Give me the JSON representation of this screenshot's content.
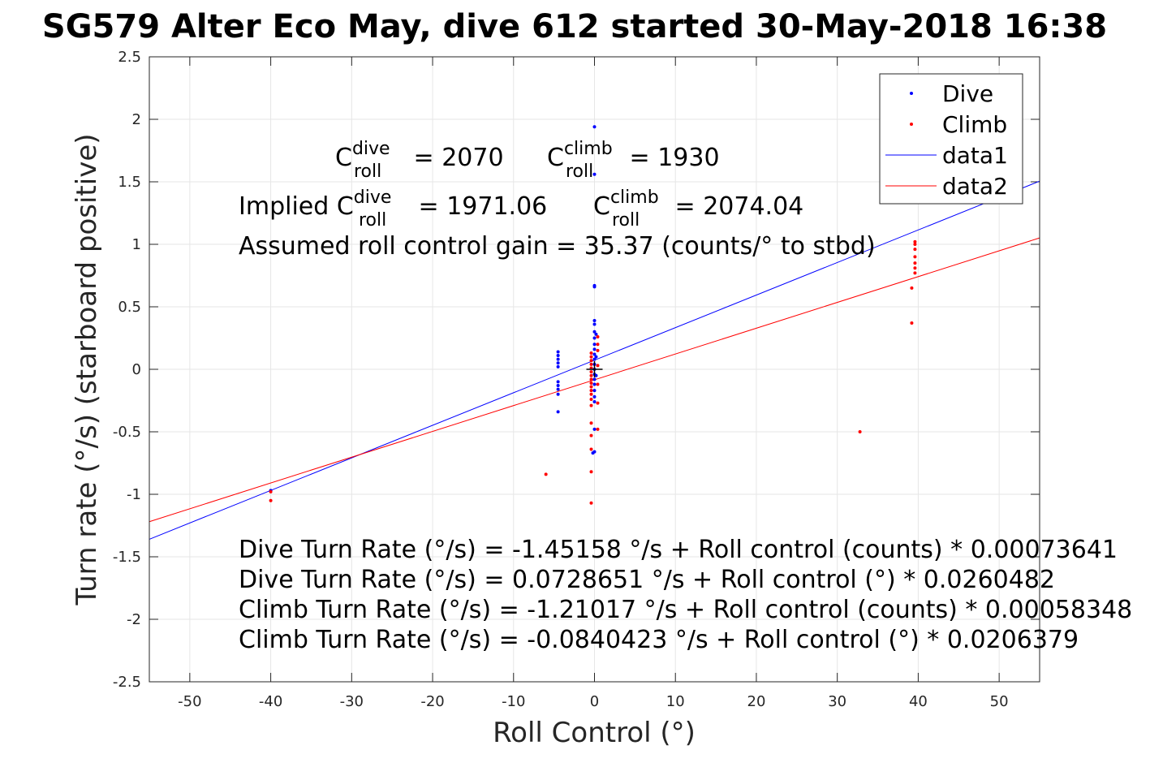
{
  "chart_data": {
    "type": "scatter",
    "title": "SG579 Alter Eco May, dive 612 started 30-May-2018 16:38",
    "xlabel": "Roll Control (°)",
    "ylabel": "Turn rate (°/s) (starboard positive)",
    "xlim": [
      -55,
      55
    ],
    "ylim": [
      -2.5,
      2.5
    ],
    "xticks": [
      -50,
      -40,
      -30,
      -20,
      -10,
      0,
      10,
      20,
      30,
      40,
      50
    ],
    "yticks": [
      -2.5,
      -2,
      -1.5,
      -1,
      -0.5,
      0,
      0.5,
      1,
      1.5,
      2,
      2.5
    ],
    "grid": true,
    "legend_position": "top-right",
    "series": [
      {
        "name": "Dive",
        "kind": "points",
        "color": "#0000ff",
        "points": [
          [
            0,
            1.94
          ],
          [
            0,
            1.56
          ],
          [
            0,
            0.67
          ],
          [
            0,
            0.66
          ],
          [
            0,
            0.39
          ],
          [
            0,
            0.36
          ],
          [
            0,
            0.3
          ],
          [
            0,
            0.25
          ],
          [
            0,
            0.2
          ],
          [
            0,
            0.16
          ],
          [
            0,
            0.12
          ],
          [
            0,
            0.08
          ],
          [
            0,
            0.04
          ],
          [
            0,
            0.0
          ],
          [
            0,
            -0.04
          ],
          [
            0,
            -0.08
          ],
          [
            0,
            -0.12
          ],
          [
            0,
            -0.17
          ],
          [
            0,
            -0.22
          ],
          [
            0,
            -0.26
          ],
          [
            0,
            -0.48
          ],
          [
            0,
            -0.66
          ],
          [
            0.2,
            0.28
          ],
          [
            0.2,
            0.1
          ],
          [
            0.2,
            -0.05
          ],
          [
            -4.5,
            0.14
          ],
          [
            -4.5,
            0.11
          ],
          [
            -4.5,
            0.08
          ],
          [
            -4.5,
            0.05
          ],
          [
            -4.5,
            0.02
          ],
          [
            -4.5,
            -0.1
          ],
          [
            -4.5,
            -0.13
          ],
          [
            -4.5,
            -0.16
          ],
          [
            -4.5,
            -0.2
          ],
          [
            -4.5,
            -0.34
          ],
          [
            -40,
            -0.97
          ],
          [
            -0.2,
            -0.67
          ]
        ]
      },
      {
        "name": "Climb",
        "kind": "points",
        "color": "#ff0000",
        "points": [
          [
            -0.4,
            0.13
          ],
          [
            -0.4,
            0.1
          ],
          [
            -0.4,
            0.07
          ],
          [
            -0.4,
            0.04
          ],
          [
            -0.4,
            0.01
          ],
          [
            -0.4,
            -0.02
          ],
          [
            -0.4,
            -0.05
          ],
          [
            -0.4,
            -0.08
          ],
          [
            -0.4,
            -0.11
          ],
          [
            -0.4,
            -0.14
          ],
          [
            -0.4,
            -0.17
          ],
          [
            -0.4,
            -0.2
          ],
          [
            -0.4,
            -0.24
          ],
          [
            -0.4,
            -0.29
          ],
          [
            -0.4,
            -0.43
          ],
          [
            -0.4,
            -0.53
          ],
          [
            -0.4,
            -0.64
          ],
          [
            -0.4,
            -0.82
          ],
          [
            -0.4,
            -1.07
          ],
          [
            0.4,
            0.26
          ],
          [
            0.4,
            0.2
          ],
          [
            0.4,
            0.15
          ],
          [
            0.4,
            0.03
          ],
          [
            0.4,
            -0.12
          ],
          [
            0.4,
            -0.27
          ],
          [
            0.4,
            -0.48
          ],
          [
            -6,
            -0.84
          ],
          [
            -40,
            -1.05
          ],
          [
            -40,
            -0.98
          ],
          [
            32.8,
            -0.5
          ],
          [
            39.2,
            0.37
          ],
          [
            39.2,
            0.65
          ],
          [
            39.6,
            0.77
          ],
          [
            39.6,
            0.81
          ],
          [
            39.6,
            0.85
          ],
          [
            39.6,
            0.9
          ],
          [
            39.6,
            0.96
          ],
          [
            39.6,
            1.0
          ],
          [
            39.6,
            1.02
          ]
        ]
      },
      {
        "name": "data1",
        "kind": "line",
        "color": "#0000ff",
        "x": [
          -55,
          55
        ],
        "y": [
          -1.3598,
          1.5055
        ]
      },
      {
        "name": "data2",
        "kind": "line",
        "color": "#ff0000",
        "x": [
          -55,
          55
        ],
        "y": [
          -1.2191,
          1.0511
        ]
      }
    ],
    "origin_marker": {
      "x": 0,
      "y": 0,
      "color": "#000000"
    },
    "annotations": {
      "c_dive": {
        "pre": "C",
        "sup": "dive",
        "sub": "roll",
        "post": " = 2070"
      },
      "c_climb": {
        "pre": "C",
        "sup": "climb",
        "sub": "roll",
        "post": " = 1930"
      },
      "implied_dive": {
        "pre": "Implied C",
        "sup": "dive",
        "sub": "roll",
        "post": " = 1971.06"
      },
      "implied_climb": {
        "pre": "C",
        "sup": "climb",
        "sub": "roll",
        "post": " = 2074.04"
      },
      "gain": "Assumed roll control gain = 35.37 (counts/° to stbd)",
      "eq1": "Dive Turn Rate (°/s) = -1.45158 °/s + Roll control (counts) * 0.00073641",
      "eq2": "Dive Turn Rate (°/s) = 0.0728651 °/s + Roll control (°) * 0.0260482",
      "eq3": "Climb Turn Rate (°/s) = -1.21017 °/s + Roll control (counts) * 0.00058348",
      "eq4": "Climb Turn Rate (°/s) = -0.0840423 °/s + Roll control (°) * 0.0206379"
    }
  }
}
